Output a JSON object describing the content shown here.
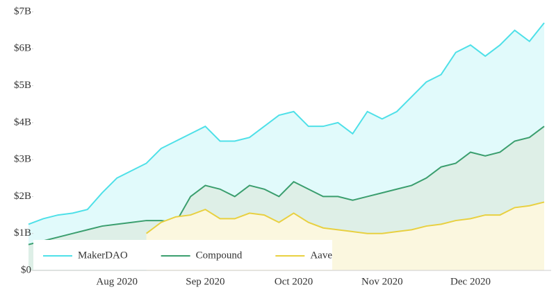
{
  "chart_data": {
    "type": "area",
    "categories": [
      null,
      null,
      null,
      null,
      null,
      null,
      "Aug 2020",
      null,
      null,
      null,
      null,
      null,
      "Sep 2020",
      null,
      null,
      null,
      null,
      null,
      "Oct 2020",
      null,
      null,
      null,
      null,
      null,
      "Nov 2020",
      null,
      null,
      null,
      null,
      null,
      "Dec 2020",
      null,
      null,
      null,
      null,
      null
    ],
    "series": [
      {
        "name": "MakerDAO",
        "color": "#4ee0e8",
        "values": [
          1.25,
          1.4,
          1.5,
          1.55,
          1.65,
          2.1,
          2.5,
          2.7,
          2.9,
          3.3,
          3.5,
          3.7,
          3.9,
          3.5,
          3.5,
          3.6,
          3.9,
          4.2,
          4.3,
          3.9,
          3.9,
          4.0,
          3.7,
          4.3,
          4.1,
          4.3,
          4.7,
          5.1,
          5.3,
          5.9,
          6.1,
          5.8,
          6.1,
          6.5,
          6.2,
          6.7
        ]
      },
      {
        "name": "Compound",
        "color": "#3a9e6e",
        "values": [
          0.7,
          0.8,
          0.9,
          1.0,
          1.1,
          1.2,
          1.25,
          1.3,
          1.35,
          1.35,
          1.3,
          2.0,
          2.3,
          2.2,
          2.0,
          2.3,
          2.2,
          2.0,
          2.4,
          2.2,
          2.0,
          2.0,
          1.9,
          2.0,
          2.1,
          2.2,
          2.3,
          2.5,
          2.8,
          2.9,
          3.2,
          3.1,
          3.2,
          3.5,
          3.6,
          3.9
        ]
      },
      {
        "name": "Aave",
        "color": "#e8d040",
        "values": [
          null,
          null,
          null,
          null,
          null,
          null,
          null,
          null,
          1.0,
          1.3,
          1.45,
          1.5,
          1.65,
          1.4,
          1.4,
          1.55,
          1.5,
          1.3,
          1.55,
          1.3,
          1.15,
          1.1,
          1.05,
          1.0,
          1.0,
          1.05,
          1.1,
          1.2,
          1.25,
          1.35,
          1.4,
          1.5,
          1.5,
          1.7,
          1.75,
          1.85
        ]
      }
    ],
    "ylim": [
      0,
      7
    ],
    "yticks": [
      {
        "value": 0,
        "label": "$0"
      },
      {
        "value": 1,
        "label": "$1B"
      },
      {
        "value": 2,
        "label": "$2B"
      },
      {
        "value": 3,
        "label": "$3B"
      },
      {
        "value": 4,
        "label": "$4B"
      },
      {
        "value": 5,
        "label": "$5B"
      },
      {
        "value": 6,
        "label": "$6B"
      },
      {
        "value": 7,
        "label": "$7B"
      }
    ],
    "legend": "lower left"
  }
}
